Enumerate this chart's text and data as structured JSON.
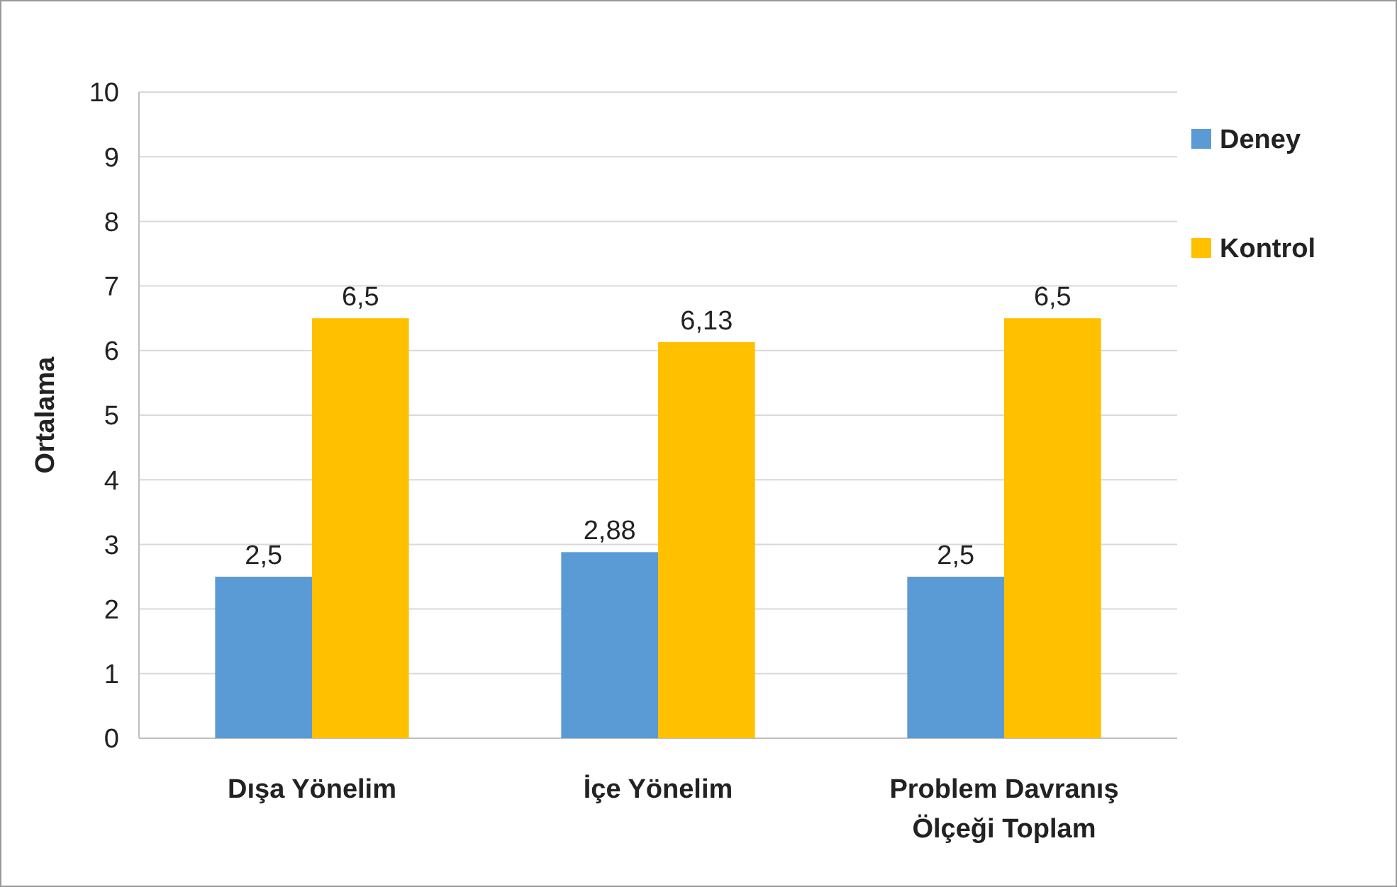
{
  "chart_data": {
    "type": "bar",
    "ylabel": "Ortalama",
    "categories": [
      "Dışa Yönelim",
      "İçe Yönelim",
      "Problem Davranış Ölçeği Toplam"
    ],
    "series": [
      {
        "name": "Deney",
        "color": "#5b9bd5",
        "values": [
          2.5,
          2.88,
          2.5
        ],
        "value_labels": [
          "2,5",
          "2,88",
          "2,5"
        ]
      },
      {
        "name": "Kontrol",
        "color": "#ffc000",
        "values": [
          6.5,
          6.13,
          6.5
        ],
        "value_labels": [
          "6,5",
          "6,13",
          "6,5"
        ]
      }
    ],
    "ylim": [
      0,
      10
    ],
    "yticks": [
      0,
      1,
      2,
      3,
      4,
      5,
      6,
      7,
      8,
      9,
      10
    ],
    "grid": "y",
    "legend": "right"
  }
}
